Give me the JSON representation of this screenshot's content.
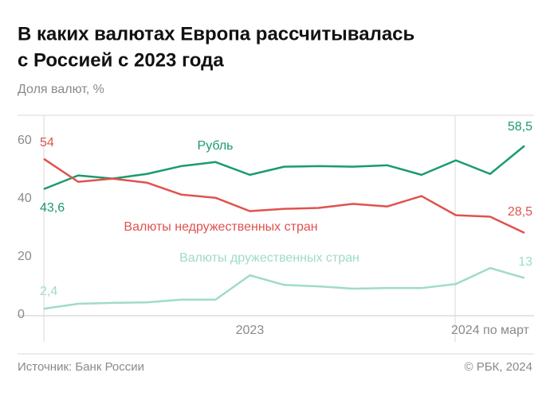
{
  "chart_data": {
    "type": "line",
    "title": [
      "В каких валютах Европа рассчитывалась",
      "с Россией с 2023 года"
    ],
    "y_label": "Доля валют, %",
    "source": "Источник: Банк России",
    "credit": "© РБК, 2024",
    "categories": [
      null,
      null,
      null,
      null,
      null,
      null,
      "2023",
      null,
      null,
      null,
      null,
      null,
      null,
      "2024 по март",
      null
    ],
    "ylim": [
      0,
      69
    ],
    "yticks": [
      0,
      20,
      40,
      60
    ],
    "series": [
      {
        "name": "Рубль",
        "color": "#1a9b6c",
        "values": [
          43.6,
          48.3,
          47.2,
          48.8,
          51.5,
          52.9,
          48.5,
          51.3,
          51.5,
          51.3,
          51.8,
          48.5,
          53.5,
          48.8,
          58.5
        ],
        "value_labels": [
          "43,6",
          null,
          null,
          null,
          null,
          null,
          null,
          null,
          null,
          null,
          null,
          null,
          null,
          null,
          "58,5"
        ]
      },
      {
        "name": "Валюты недружественных стран",
        "color": "#e0524e",
        "values": [
          54,
          46.1,
          47.2,
          45.8,
          41.7,
          40.6,
          36.0,
          36.8,
          37.1,
          38.5,
          37.6,
          41.2,
          34.6,
          34.1,
          28.5
        ],
        "value_labels": [
          "54",
          null,
          null,
          null,
          null,
          null,
          null,
          null,
          null,
          null,
          null,
          null,
          null,
          null,
          "28,5"
        ]
      },
      {
        "name": "Валюты дружественных стран",
        "color": "#9fdcc4",
        "values": [
          2.4,
          4.1,
          4.4,
          4.6,
          5.5,
          5.5,
          13.9,
          10.6,
          10.1,
          9.3,
          9.5,
          9.5,
          10.9,
          16.4,
          13
        ],
        "value_labels": [
          "2,4",
          null,
          null,
          null,
          null,
          null,
          null,
          null,
          null,
          null,
          null,
          null,
          null,
          null,
          "13"
        ]
      }
    ]
  }
}
